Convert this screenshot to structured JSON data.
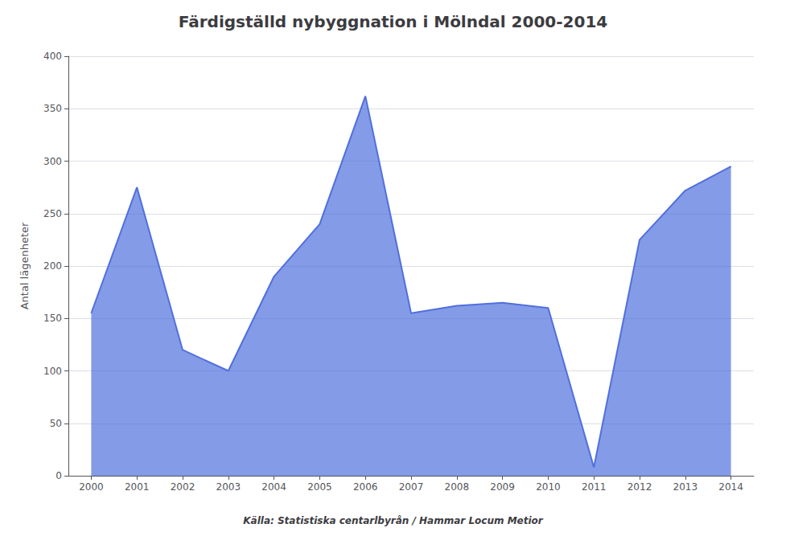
{
  "chart_data": {
    "type": "area",
    "title": "Färdigställd nybyggnation i Mölndal 2000-2014",
    "ylabel": "Antal lägenheter",
    "caption": "Källa: Statistiska centarlbyrån / Hammar Locum Metior",
    "x": [
      2000,
      2001,
      2002,
      2003,
      2004,
      2005,
      2006,
      2007,
      2008,
      2009,
      2010,
      2011,
      2012,
      2013,
      2014
    ],
    "values": [
      155,
      275,
      120,
      100,
      190,
      240,
      362,
      155,
      162,
      165,
      160,
      8,
      225,
      272,
      295
    ],
    "xlim": [
      1999.5,
      2014.5
    ],
    "xticks": [
      2000,
      2001,
      2002,
      2003,
      2004,
      2005,
      2006,
      2007,
      2008,
      2009,
      2010,
      2011,
      2012,
      2013,
      2014
    ],
    "ylim": [
      0,
      400
    ],
    "yticks": [
      0,
      50,
      100,
      150,
      200,
      250,
      300,
      350,
      400
    ],
    "grid": true
  }
}
